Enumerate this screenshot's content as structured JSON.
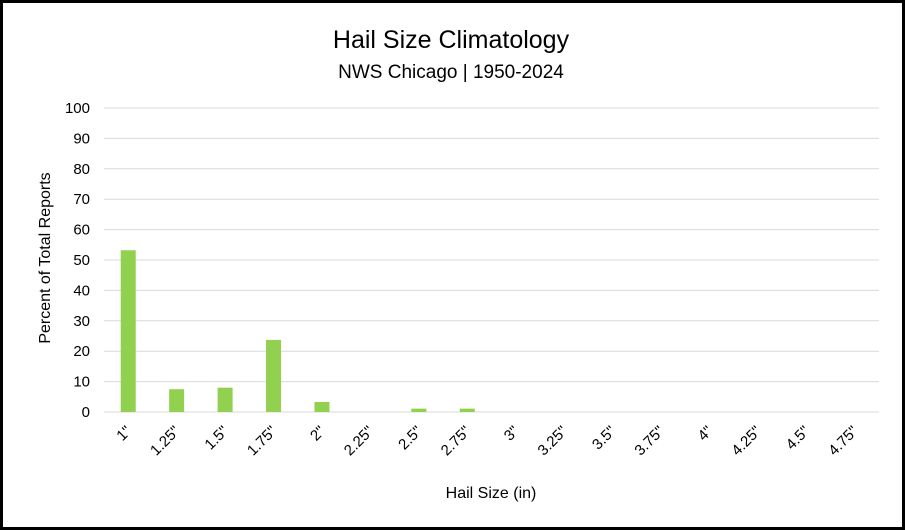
{
  "chart_data": {
    "type": "bar",
    "title": "Hail Size Climatology",
    "subtitle": "NWS Chicago | 1950-2024",
    "xlabel": "Hail Size (in)",
    "ylabel": "Percent of Total Reports",
    "ylim": [
      0,
      100
    ],
    "yticks": [
      "0",
      "10",
      "20",
      "30",
      "40",
      "50",
      "60",
      "70",
      "80",
      "90",
      "100"
    ],
    "categories": [
      "1\"",
      "1.25\"",
      "1.5\"",
      "1.75\"",
      "2\"",
      "2.25\"",
      "2.5\"",
      "2.75\"",
      "3\"",
      "3.25\"",
      "3.5\"",
      "3.75\"",
      "4\"",
      "4.25\"",
      "4.5\"",
      "4.75\""
    ],
    "values": [
      53.2,
      7.5,
      8.0,
      23.7,
      3.3,
      0,
      1.1,
      1.1,
      0,
      0,
      0,
      0,
      0,
      0,
      0,
      0
    ],
    "grid": true,
    "bar_color": "#92d050",
    "grid_color": "#d9d9d9"
  }
}
